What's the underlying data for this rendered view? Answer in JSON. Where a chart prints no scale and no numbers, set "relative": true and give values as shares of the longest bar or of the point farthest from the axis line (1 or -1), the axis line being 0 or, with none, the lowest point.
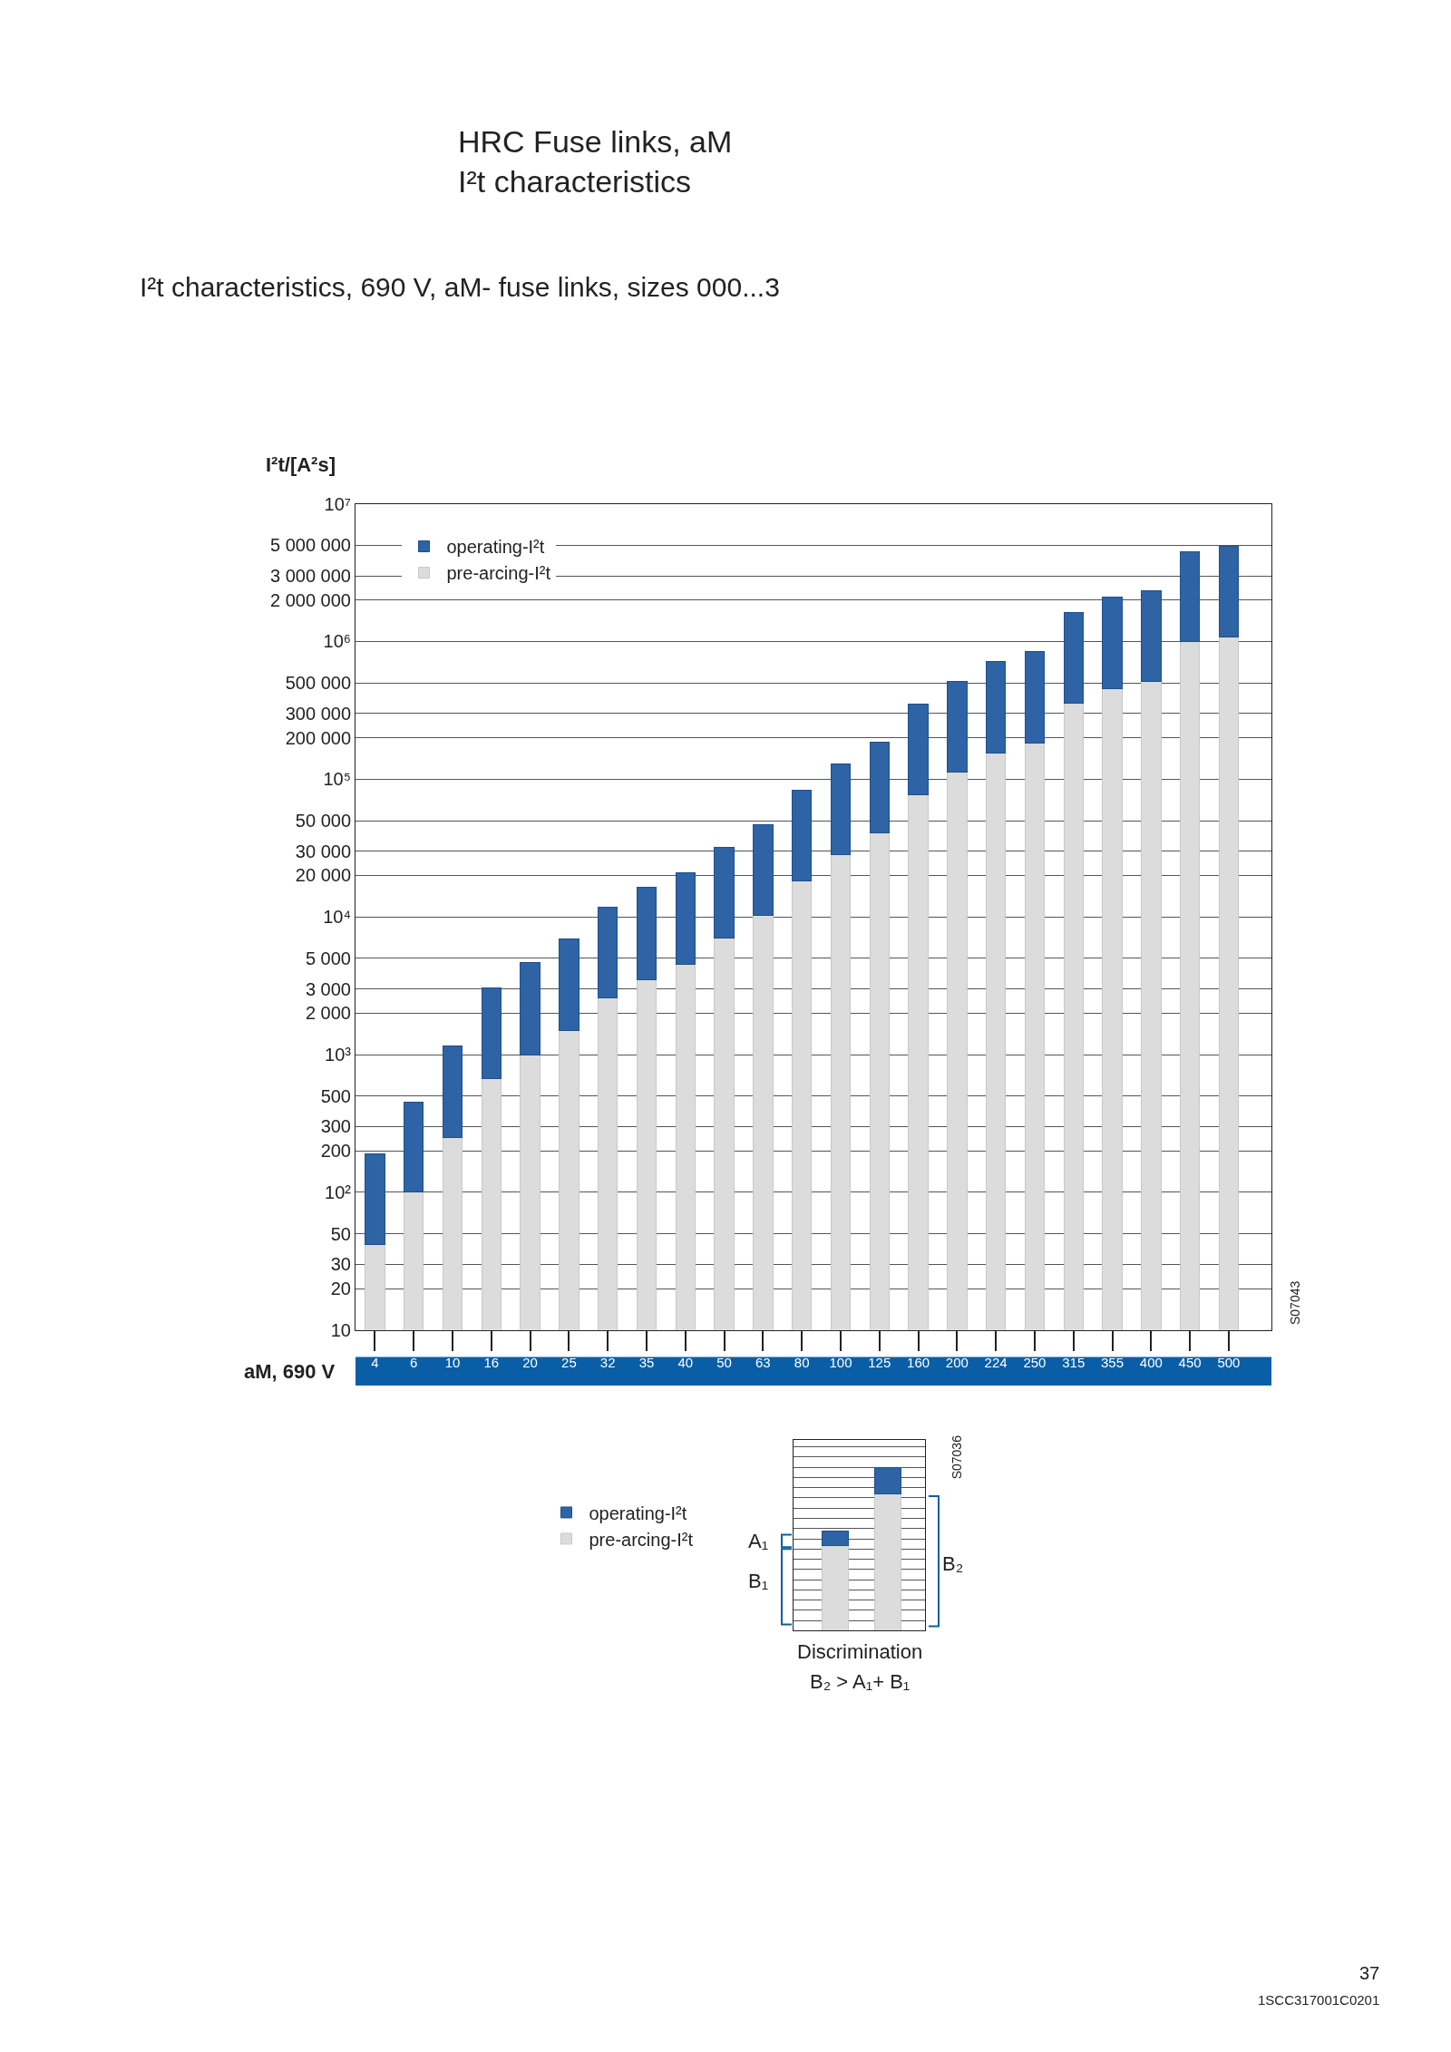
{
  "chart_data": [
    {
      "type": "bar",
      "title": "HRC Fuse links, aM\nI²t characteristics",
      "subtitle": "I²t characteristics, 690 V, aM- fuse links, sizes 000...3",
      "xlabel": "aM, 690 V",
      "ylabel": "I²t/[A²s]",
      "categories": [
        "4",
        "6",
        "10",
        "16",
        "20",
        "25",
        "32",
        "35",
        "40",
        "50",
        "63",
        "80",
        "100",
        "125",
        "160",
        "200",
        "224",
        "250",
        "315",
        "355",
        "400",
        "450",
        "500"
      ],
      "stacked": true,
      "log": true,
      "grid": "y",
      "legend": "top left",
      "ylim": [
        10,
        10000000
      ],
      "yticks": [
        10,
        20,
        30,
        50,
        {
          "value": 100,
          "label": "10²"
        },
        200,
        300,
        500,
        {
          "value": 1000,
          "label": "10³"
        },
        {
          "value": 2000,
          "label": "2 000"
        },
        {
          "value": 3000,
          "label": "3 000"
        },
        {
          "value": 5000,
          "label": "5 000"
        },
        {
          "value": 10000,
          "label": "10⁴"
        },
        {
          "value": 20000,
          "label": "20 000"
        },
        {
          "value": 30000,
          "label": "30 000"
        },
        {
          "value": 50000,
          "label": "50 000"
        },
        {
          "value": 100000,
          "label": "10⁵"
        },
        {
          "value": 200000,
          "label": "200 000"
        },
        {
          "value": 300000,
          "label": "300 000"
        },
        {
          "value": 500000,
          "label": "500 000"
        },
        {
          "value": 1000000,
          "label": "10⁶"
        },
        {
          "value": 2000000,
          "label": "2 000 000"
        },
        {
          "value": 3000000,
          "label": "3 000 000"
        },
        {
          "value": 5000000,
          "label": "5 000 000"
        },
        {
          "value": 10000000,
          "label": "10⁷"
        }
      ],
      "series": [
        {
          "name": "pre-arcing-I²t",
          "color": "#dcdcdc",
          "values": [
            42,
            100,
            250,
            670,
            1000,
            1500,
            2600,
            3500,
            4500,
            7000,
            10200,
            18200,
            28400,
            40800,
            77000,
            113000,
            154000,
            184000,
            356000,
            457000,
            512000,
            1000000,
            1080000
          ]
        },
        {
          "name": "operating-I²t",
          "color": "#2e64a6",
          "values": [
            148,
            350,
            910,
            2400,
            3650,
            5400,
            9200,
            12800,
            16300,
            24800,
            36600,
            65300,
            101600,
            146200,
            275000,
            403000,
            559000,
            665000,
            1274000,
            1633000,
            1828000,
            3510000,
            3860000
          ]
        }
      ],
      "annotations": [
        "S07043",
        "37",
        "1SCC317001C0201"
      ]
    },
    {
      "type": "bar",
      "categories": [
        null,
        null
      ],
      "stacked": true,
      "relative": true,
      "grid": "y",
      "legend": "left",
      "xlabel": "Discrimination",
      "series": [
        {
          "name": "pre-arcing-I²t",
          "color": "#dcdcdc",
          "values": [
            0.52,
            0.84
          ]
        },
        {
          "name": "operating-I²t",
          "color": "#2e64a6",
          "values": [
            0.09,
            0.16
          ]
        }
      ],
      "annotations": [
        "A₁",
        "B₁",
        "B₂",
        "B₂ > A₁+ B₁",
        "S07036"
      ]
    }
  ]
}
